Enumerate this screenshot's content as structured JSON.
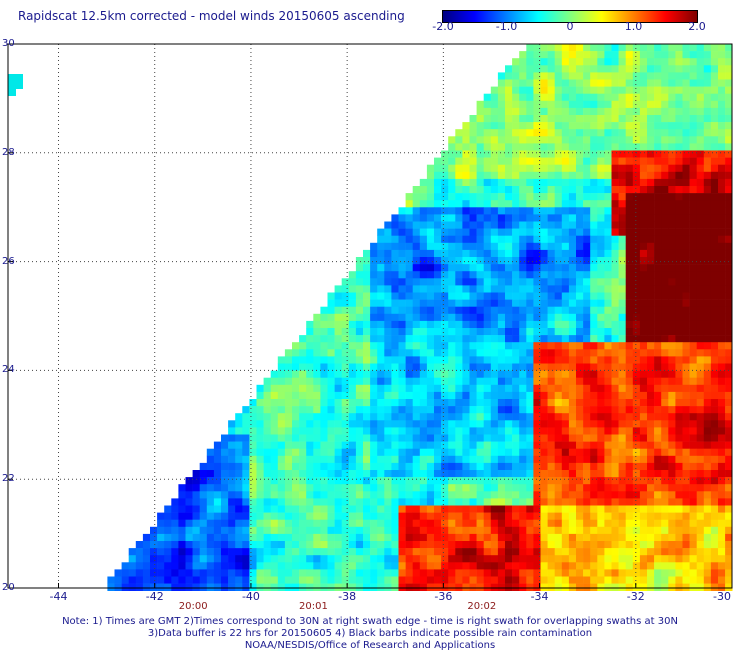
{
  "title": "Rapidscat 12.5km corrected - model winds 20150605 ascending",
  "colorbar": {
    "ticks": [
      "-2.0",
      "-1.0",
      "0",
      "1.0",
      "2.0"
    ],
    "tick_values": [
      -2.0,
      -1.0,
      0,
      1.0,
      2.0
    ],
    "colors": [
      "#00007f",
      "#0000ff",
      "#0080ff",
      "#00ffff",
      "#80ff80",
      "#ffff00",
      "#ff8000",
      "#ff0000",
      "#7f0000"
    ]
  },
  "axes": {
    "lon_ticks": [
      "-44",
      "-42",
      "-40",
      "-38",
      "-36",
      "-34",
      "-32",
      "-30"
    ],
    "lon_values": [
      -44,
      -42,
      -40,
      -38,
      -36,
      -34,
      -32,
      -30
    ],
    "lat_ticks": [
      "30",
      "28",
      "26",
      "24",
      "22",
      "20"
    ],
    "lat_values": [
      30,
      28,
      26,
      24,
      22,
      20
    ],
    "lon_range": [
      -45.05,
      -30
    ],
    "lat_range": [
      20,
      30
    ]
  },
  "time_labels": [
    {
      "text": "20:00",
      "lon": -41.2
    },
    {
      "text": "20:01",
      "lon": -38.7
    },
    {
      "text": "20:02",
      "lon": -35.2
    }
  ],
  "notes": [
    "Note: 1) Times are GMT 2)Times correspond to 30N at right swath edge - time is right swath for overlapping swaths at 30N",
    "3)Data buffer is 22 hrs for 20150605 4) Black barbs indicate possible rain contamination",
    "NOAA/NESDIS/Office of Research and Applications"
  ]
}
